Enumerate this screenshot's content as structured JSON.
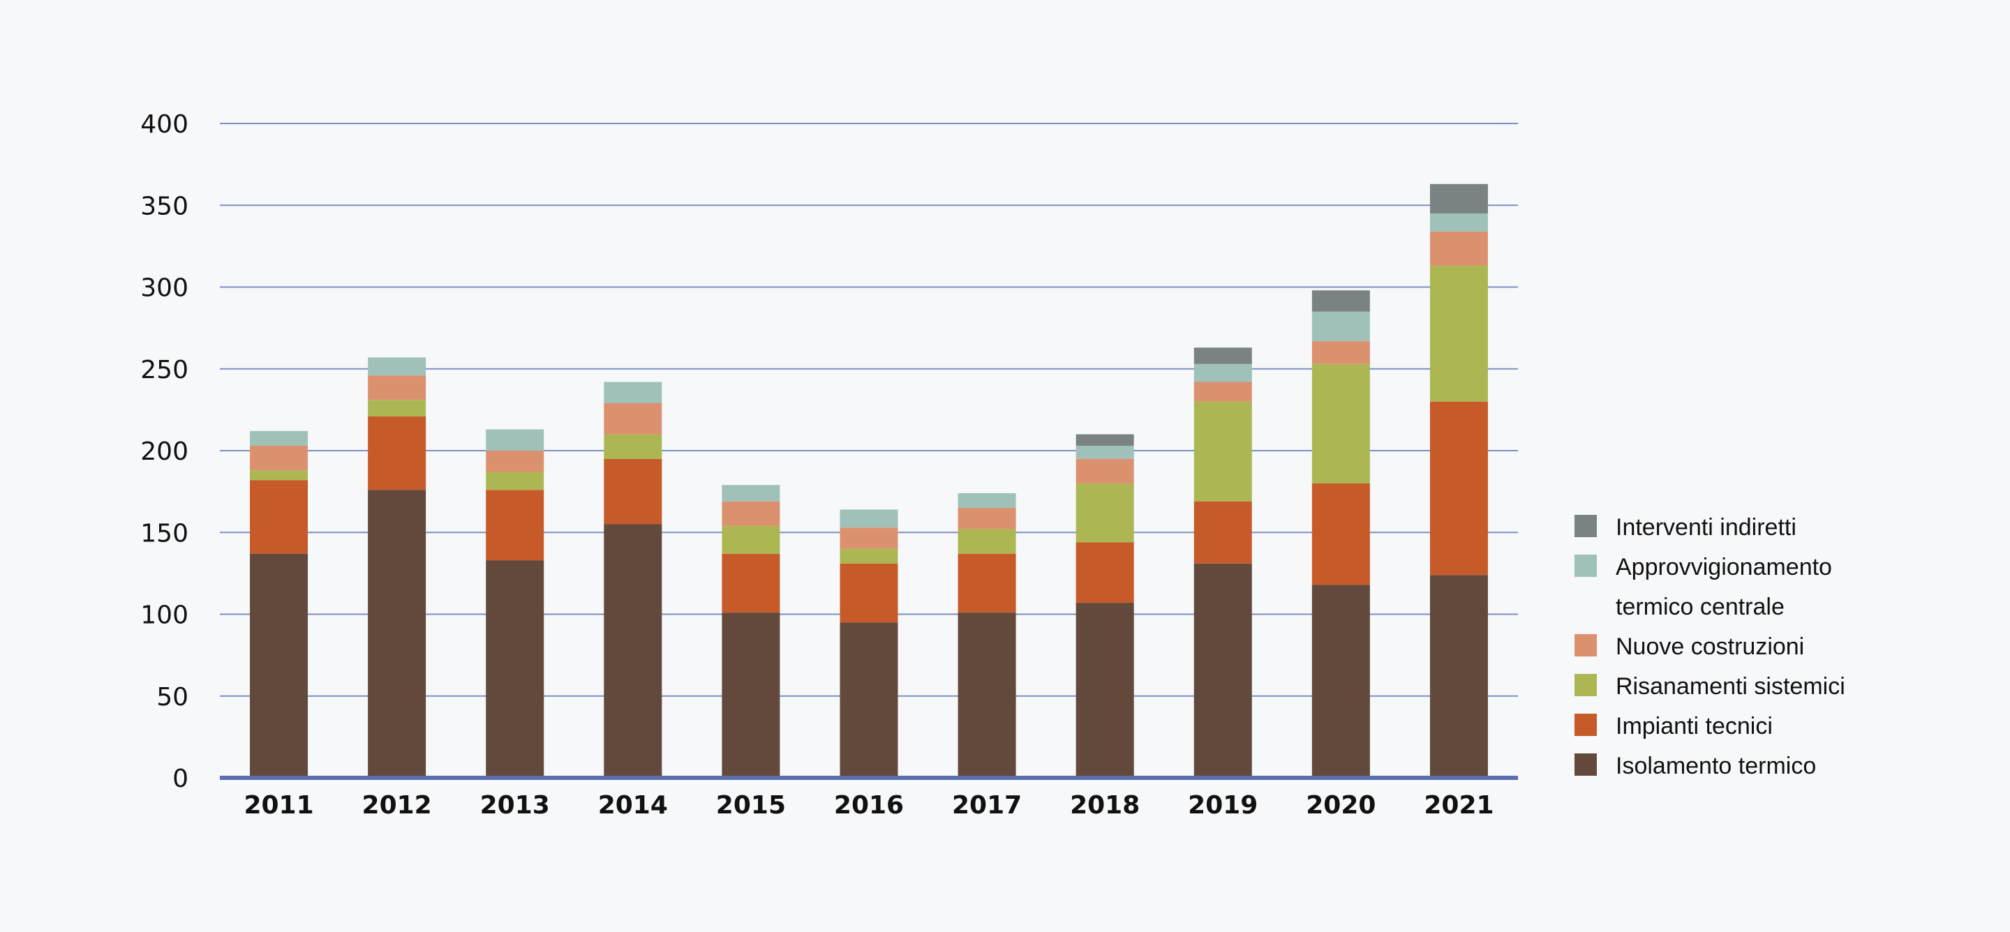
{
  "chart_data": {
    "type": "bar",
    "stacked": true,
    "title": "",
    "xlabel": "",
    "ylabel": "",
    "ylim": [
      0,
      400
    ],
    "yticks": [
      0,
      50,
      100,
      150,
      200,
      250,
      300,
      350,
      400
    ],
    "grid": true,
    "legend_position": "right",
    "categories": [
      "2011",
      "2012",
      "2013",
      "2014",
      "2015",
      "2016",
      "2017",
      "2018",
      "2019",
      "2020",
      "2021"
    ],
    "series": [
      {
        "name": "Isolamento termico",
        "color": "#62493c",
        "values": [
          137,
          176,
          133,
          155,
          101,
          95,
          101,
          107,
          131,
          118,
          124
        ]
      },
      {
        "name": "Impianti tecnici",
        "color": "#c65a28",
        "values": [
          45,
          45,
          43,
          40,
          36,
          36,
          36,
          37,
          38,
          62,
          106
        ]
      },
      {
        "name": "Risanamenti sistemici",
        "color": "#acb754",
        "values": [
          6,
          10,
          11,
          15,
          17,
          9,
          15,
          36,
          61,
          73,
          83
        ]
      },
      {
        "name": "Nuove costruzioni",
        "color": "#dc916e",
        "values": [
          15,
          15,
          13,
          19,
          15,
          13,
          13,
          15,
          12,
          14,
          21
        ]
      },
      {
        "name": "Approvvigionamento termico centrale",
        "legend_lines": [
          "Approvvigionamento",
          "termico centrale"
        ],
        "color": "#9fc1b9",
        "values": [
          9,
          11,
          13,
          13,
          10,
          11,
          9,
          8,
          11,
          18,
          11
        ]
      },
      {
        "name": "Interventi indiretti",
        "color": "#7a8282",
        "values": [
          0,
          0,
          0,
          0,
          0,
          0,
          0,
          7,
          10,
          13,
          18
        ]
      }
    ],
    "colors": {
      "grid": "#7c8fbf",
      "axis": "#5a6fb0",
      "background": "#f6f8fa"
    }
  }
}
